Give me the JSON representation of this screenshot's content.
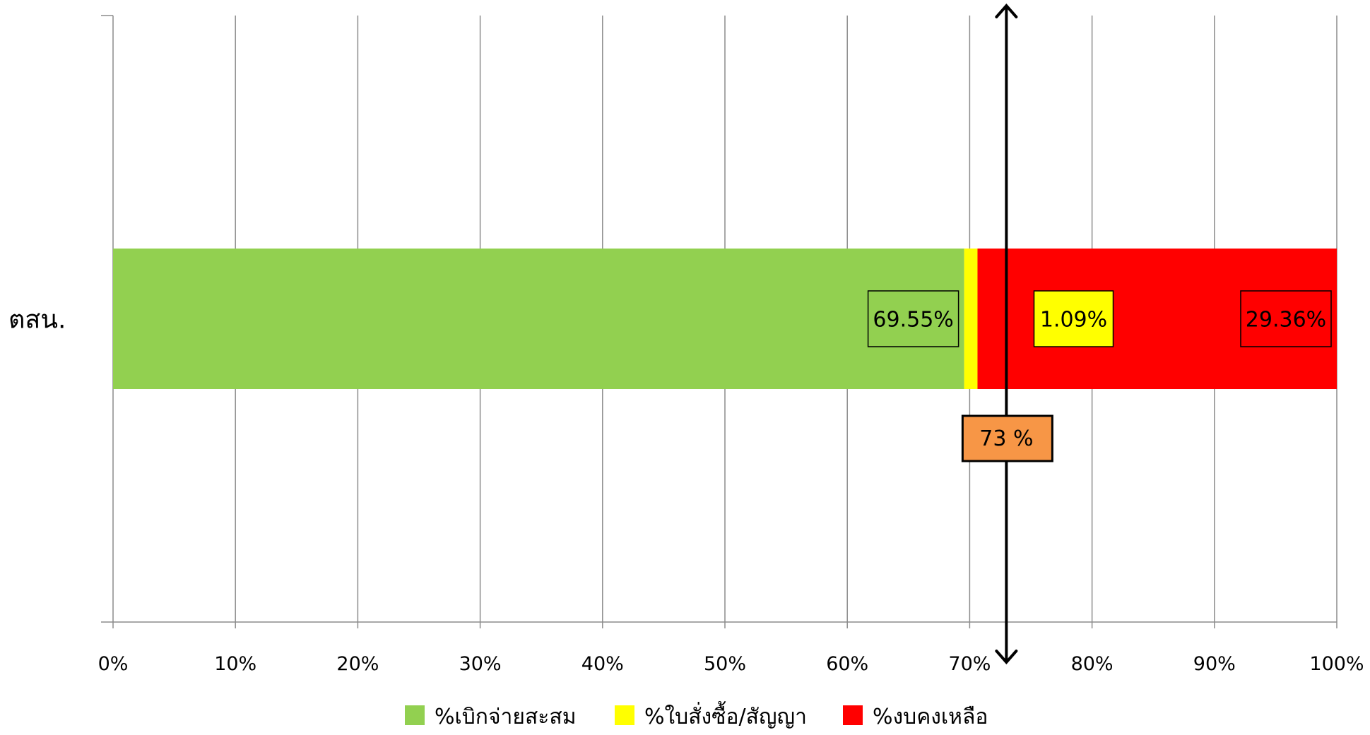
{
  "chart_data": {
    "type": "bar",
    "orientation": "horizontal",
    "stacked": "percent",
    "categories": [
      "ตสน."
    ],
    "series": [
      {
        "name": "%เบิกจ่ายสะสม",
        "values": [
          69.55
        ],
        "color": "#92D050",
        "label": "69.55%",
        "label_bg": "#92D050",
        "label_color": "#000000"
      },
      {
        "name": "%ใบสั่งซื้อ/สัญญา",
        "values": [
          1.09
        ],
        "color": "#FFFF00",
        "label": "1.09%",
        "label_bg": "#FFFF00",
        "label_color": "#000000"
      },
      {
        "name": "%งบคงเหลือ",
        "values": [
          29.36
        ],
        "color": "#FF0000",
        "label": "29.36%",
        "label_bg": "#FF0000",
        "label_color": "#000000"
      }
    ],
    "xlim": [
      0,
      100
    ],
    "x_ticks": [
      "0%",
      "10%",
      "20%",
      "30%",
      "40%",
      "50%",
      "60%",
      "70%",
      "80%",
      "90%",
      "100%"
    ],
    "grid": true,
    "legend": "bottom",
    "target": {
      "value": 73,
      "label": "73 %",
      "color": "#F79646"
    }
  }
}
